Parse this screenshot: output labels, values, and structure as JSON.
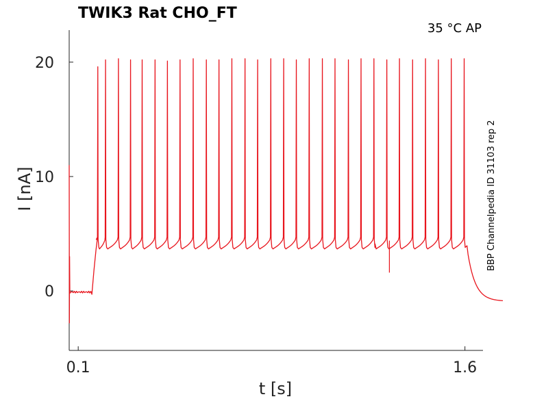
{
  "chart_data": {
    "type": "line",
    "title": "TWIK3  Rat  CHO_FT",
    "condition": "35 °C  AP",
    "side_note": "BBP Channelpedia ID 31103 rep 2",
    "xlabel": "t [s]",
    "ylabel": "I [nA]",
    "xlim": [
      0.065,
      1.67
    ],
    "ylim": [
      -5.2,
      22.8
    ],
    "x_ticks": [
      0.1,
      1.6
    ],
    "x_tick_labels": [
      "0.1",
      "1.6"
    ],
    "y_ticks": [
      0,
      10,
      20
    ],
    "y_tick_labels": [
      "0",
      "10",
      "20"
    ],
    "grid": false,
    "color": "#e8141c",
    "series": [
      {
        "baseline": -0.1,
        "stim_on": 0.153,
        "stim_off": 1.608,
        "plateau_start": 4.7,
        "interspike_level": 3.8,
        "pre_spike_level": 4.6,
        "end_level": -0.9,
        "spike_times": [
          0.176,
          0.206,
          0.256,
          0.303,
          0.348,
          0.398,
          0.446,
          0.495,
          0.546,
          0.597,
          0.646,
          0.696,
          0.747,
          0.796,
          0.847,
          0.897,
          0.946,
          0.996,
          1.047,
          1.096,
          1.148,
          1.197,
          1.247,
          1.297,
          1.346,
          1.397,
          1.447,
          1.497,
          1.547,
          1.597
        ],
        "spike_peaks": [
          19.6,
          20.2,
          20.3,
          20.2,
          20.2,
          20.2,
          20.1,
          20.2,
          20.3,
          20.2,
          20.2,
          20.3,
          20.3,
          20.2,
          20.3,
          20.3,
          20.2,
          20.3,
          20.3,
          20.3,
          20.2,
          20.3,
          20.3,
          20.2,
          20.3,
          20.2,
          20.3,
          20.2,
          20.3,
          20.3
        ]
      }
    ]
  }
}
